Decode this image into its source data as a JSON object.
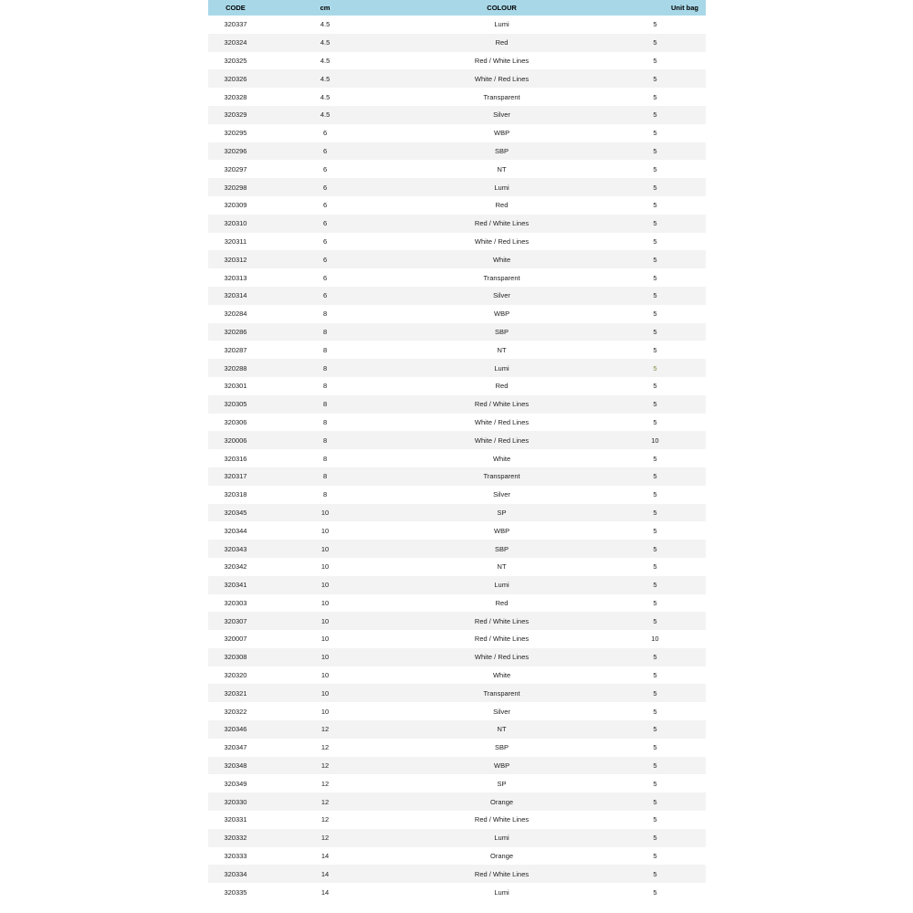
{
  "table": {
    "type": "table",
    "columns": [
      "CODE",
      "cm",
      "COLOUR",
      "Unit bag"
    ],
    "header_bg": "#a8d8e8",
    "row_bg_odd": "#ffffff",
    "row_bg_even": "#f3f3f3",
    "text_color": "#222222",
    "highlight_color": "#778c42",
    "font_size": 7.5,
    "rows": [
      {
        "code": "320337",
        "cm": "4.5",
        "colour": "Lumi",
        "unit": "5"
      },
      {
        "code": "320324",
        "cm": "4.5",
        "colour": "Red",
        "unit": "5"
      },
      {
        "code": "320325",
        "cm": "4.5",
        "colour": "Red / White Lines",
        "unit": "5"
      },
      {
        "code": "320326",
        "cm": "4.5",
        "colour": "White / Red Lines",
        "unit": "5"
      },
      {
        "code": "320328",
        "cm": "4.5",
        "colour": "Transparent",
        "unit": "5"
      },
      {
        "code": "320329",
        "cm": "4.5",
        "colour": "Silver",
        "unit": "5"
      },
      {
        "code": "320295",
        "cm": "6",
        "colour": "WBP",
        "unit": "5"
      },
      {
        "code": "320296",
        "cm": "6",
        "colour": "SBP",
        "unit": "5"
      },
      {
        "code": "320297",
        "cm": "6",
        "colour": "NT",
        "unit": "5"
      },
      {
        "code": "320298",
        "cm": "6",
        "colour": "Lumi",
        "unit": "5"
      },
      {
        "code": "320309",
        "cm": "6",
        "colour": "Red",
        "unit": "5"
      },
      {
        "code": "320310",
        "cm": "6",
        "colour": "Red / White Lines",
        "unit": "5"
      },
      {
        "code": "320311",
        "cm": "6",
        "colour": "White / Red Lines",
        "unit": "5"
      },
      {
        "code": "320312",
        "cm": "6",
        "colour": "White",
        "unit": "5"
      },
      {
        "code": "320313",
        "cm": "6",
        "colour": "Transparent",
        "unit": "5"
      },
      {
        "code": "320314",
        "cm": "6",
        "colour": "Silver",
        "unit": "5"
      },
      {
        "code": "320284",
        "cm": "8",
        "colour": "WBP",
        "unit": "5"
      },
      {
        "code": "320286",
        "cm": "8",
        "colour": "SBP",
        "unit": "5"
      },
      {
        "code": "320287",
        "cm": "8",
        "colour": "NT",
        "unit": "5"
      },
      {
        "code": "320288",
        "cm": "8",
        "colour": "Lumi",
        "unit": "5",
        "highlight": true
      },
      {
        "code": "320301",
        "cm": "8",
        "colour": "Red",
        "unit": "5"
      },
      {
        "code": "320305",
        "cm": "8",
        "colour": "Red / White Lines",
        "unit": "5"
      },
      {
        "code": "320306",
        "cm": "8",
        "colour": "White / Red Lines",
        "unit": "5"
      },
      {
        "code": "320006",
        "cm": "8",
        "colour": "White / Red Lines",
        "unit": "10"
      },
      {
        "code": "320316",
        "cm": "8",
        "colour": "White",
        "unit": "5"
      },
      {
        "code": "320317",
        "cm": "8",
        "colour": "Transparent",
        "unit": "5"
      },
      {
        "code": "320318",
        "cm": "8",
        "colour": "Silver",
        "unit": "5"
      },
      {
        "code": "320345",
        "cm": "10",
        "colour": "SP",
        "unit": "5"
      },
      {
        "code": "320344",
        "cm": "10",
        "colour": "WBP",
        "unit": "5"
      },
      {
        "code": "320343",
        "cm": "10",
        "colour": "SBP",
        "unit": "5"
      },
      {
        "code": "320342",
        "cm": "10",
        "colour": "NT",
        "unit": "5"
      },
      {
        "code": "320341",
        "cm": "10",
        "colour": "Lumi",
        "unit": "5"
      },
      {
        "code": "320303",
        "cm": "10",
        "colour": "Red",
        "unit": "5"
      },
      {
        "code": "320307",
        "cm": "10",
        "colour": "Red / White Lines",
        "unit": "5"
      },
      {
        "code": "320007",
        "cm": "10",
        "colour": "Red / White Lines",
        "unit": "10"
      },
      {
        "code": "320308",
        "cm": "10",
        "colour": "White / Red Lines",
        "unit": "5"
      },
      {
        "code": "320320",
        "cm": "10",
        "colour": "White",
        "unit": "5"
      },
      {
        "code": "320321",
        "cm": "10",
        "colour": "Transparent",
        "unit": "5"
      },
      {
        "code": "320322",
        "cm": "10",
        "colour": "Silver",
        "unit": "5"
      },
      {
        "code": "320346",
        "cm": "12",
        "colour": "NT",
        "unit": "5"
      },
      {
        "code": "320347",
        "cm": "12",
        "colour": "SBP",
        "unit": "5"
      },
      {
        "code": "320348",
        "cm": "12",
        "colour": "WBP",
        "unit": "5"
      },
      {
        "code": "320349",
        "cm": "12",
        "colour": "SP",
        "unit": "5"
      },
      {
        "code": "320330",
        "cm": "12",
        "colour": "Orange",
        "unit": "5"
      },
      {
        "code": "320331",
        "cm": "12",
        "colour": "Red / White Lines",
        "unit": "5"
      },
      {
        "code": "320332",
        "cm": "12",
        "colour": "Lumi",
        "unit": "5"
      },
      {
        "code": "320333",
        "cm": "14",
        "colour": "Orange",
        "unit": "5"
      },
      {
        "code": "320334",
        "cm": "14",
        "colour": "Red / White Lines",
        "unit": "5"
      },
      {
        "code": "320335",
        "cm": "14",
        "colour": "Lumi",
        "unit": "5"
      }
    ]
  }
}
